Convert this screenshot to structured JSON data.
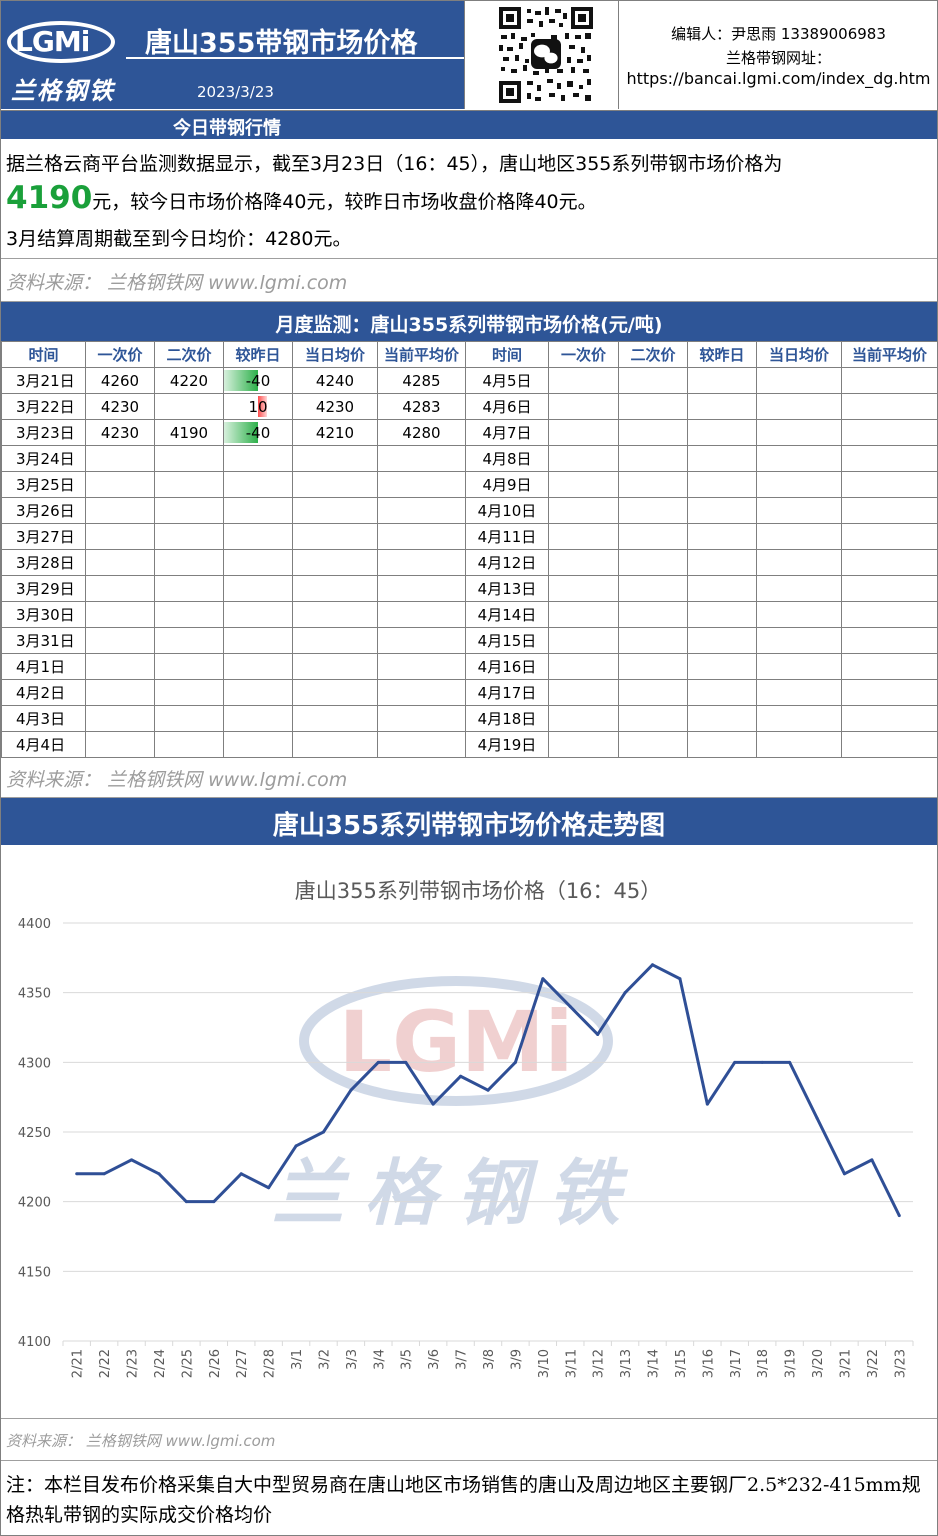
{
  "header": {
    "logo_text": "LGMi",
    "logo_cn": "兰格钢铁",
    "title": "唐山355带钢市场价格",
    "date": "2023/3/23",
    "editor": "编辑人：尹思雨 13389006983",
    "site_label": "兰格带钢网址：",
    "site_url": "https://bancai.lgmi.com/index_dg.htm"
  },
  "today": {
    "heading": "今日带钢行情",
    "line1": "据兰格云商平台监测数据显示，截至3月23日（16：45），唐山地区355系列带钢市场价格为",
    "price": "4190",
    "line2_rest": "元，较今日市场价格降40元，较昨日市场收盘价格降40元。",
    "line3": "3月结算周期截至到今日均价：4280元。",
    "source": "资料来源： 兰格钢铁网 www.lgmi.com"
  },
  "monthly": {
    "heading": "月度监测：唐山355系列带钢市场价格(元/吨)",
    "columns": [
      "时间",
      "一次价",
      "二次价",
      "较昨日",
      "当日均价",
      "当前平均价",
      "时间",
      "一次价",
      "二次价",
      "较昨日",
      "当日均价",
      "当前平均价"
    ],
    "rows": [
      [
        "3月21日",
        "4260",
        "4220",
        "-40",
        "4240",
        "4285",
        "4月5日",
        "",
        "",
        "",
        "",
        ""
      ],
      [
        "3月22日",
        "4230",
        "",
        "10",
        "4230",
        "4283",
        "4月6日",
        "",
        "",
        "",
        "",
        ""
      ],
      [
        "3月23日",
        "4230",
        "4190",
        "-40",
        "4210",
        "4280",
        "4月7日",
        "",
        "",
        "",
        "",
        ""
      ],
      [
        "3月24日",
        "",
        "",
        "",
        "",
        "",
        "4月8日",
        "",
        "",
        "",
        "",
        ""
      ],
      [
        "3月25日",
        "",
        "",
        "",
        "",
        "",
        "4月9日",
        "",
        "",
        "",
        "",
        ""
      ],
      [
        "3月26日",
        "",
        "",
        "",
        "",
        "",
        "4月10日",
        "",
        "",
        "",
        "",
        ""
      ],
      [
        "3月27日",
        "",
        "",
        "",
        "",
        "",
        "4月11日",
        "",
        "",
        "",
        "",
        ""
      ],
      [
        "3月28日",
        "",
        "",
        "",
        "",
        "",
        "4月12日",
        "",
        "",
        "",
        "",
        ""
      ],
      [
        "3月29日",
        "",
        "",
        "",
        "",
        "",
        "4月13日",
        "",
        "",
        "",
        "",
        ""
      ],
      [
        "3月30日",
        "",
        "",
        "",
        "",
        "",
        "4月14日",
        "",
        "",
        "",
        "",
        ""
      ],
      [
        "3月31日",
        "",
        "",
        "",
        "",
        "",
        "4月15日",
        "",
        "",
        "",
        "",
        ""
      ],
      [
        "4月1日",
        "",
        "",
        "",
        "",
        "",
        "4月16日",
        "",
        "",
        "",
        "",
        ""
      ],
      [
        "4月2日",
        "",
        "",
        "",
        "",
        "",
        "4月17日",
        "",
        "",
        "",
        "",
        ""
      ],
      [
        "4月3日",
        "",
        "",
        "",
        "",
        "",
        "4月18日",
        "",
        "",
        "",
        "",
        ""
      ],
      [
        "4月4日",
        "",
        "",
        "",
        "",
        "",
        "4月19日",
        "",
        "",
        "",
        "",
        ""
      ]
    ],
    "source": "资料来源： 兰格钢铁网 www.lgmi.com"
  },
  "trend_heading": "唐山355系列带钢市场价格走势图",
  "chart_data": {
    "type": "line",
    "title": "唐山355系列带钢市场价格（16：45）",
    "xlabel": "",
    "ylabel": "",
    "ylim": [
      4100,
      4400
    ],
    "yticks": [
      4100,
      4150,
      4200,
      4250,
      4300,
      4350,
      4400
    ],
    "grid": true,
    "watermark": "兰格钢铁",
    "line_color": "#2f4f96",
    "x": [
      "2/21",
      "2/22",
      "2/23",
      "2/24",
      "2/25",
      "2/26",
      "2/27",
      "2/28",
      "3/1",
      "3/2",
      "3/3",
      "3/4",
      "3/5",
      "3/6",
      "3/7",
      "3/8",
      "3/9",
      "3/10",
      "3/11",
      "3/12",
      "3/13",
      "3/14",
      "3/15",
      "3/16",
      "3/17",
      "3/18",
      "3/19",
      "3/20",
      "3/21",
      "3/22",
      "3/23"
    ],
    "series": [
      {
        "values": [
          4220,
          4220,
          4230,
          4220,
          4200,
          4200,
          4220,
          4210,
          4240,
          4250,
          4280,
          4300,
          4300,
          4270,
          4290,
          4280,
          4300,
          4360,
          4340,
          4320,
          4350,
          4370,
          4360,
          4270,
          4300,
          4300,
          4300,
          4260,
          4220,
          4230,
          4190
        ]
      }
    ],
    "source": "资料来源： 兰格钢铁网 www.lgmi.com"
  },
  "note": "注：本栏目发布价格采集自大中型贸易商在唐山地区市场销售的唐山及周边地区主要钢厂2.5*232-415mm规格热轧带钢的实际成交价格均价",
  "colors": {
    "brand_blue": "#2e5597",
    "price_green": "#1aa03a"
  }
}
